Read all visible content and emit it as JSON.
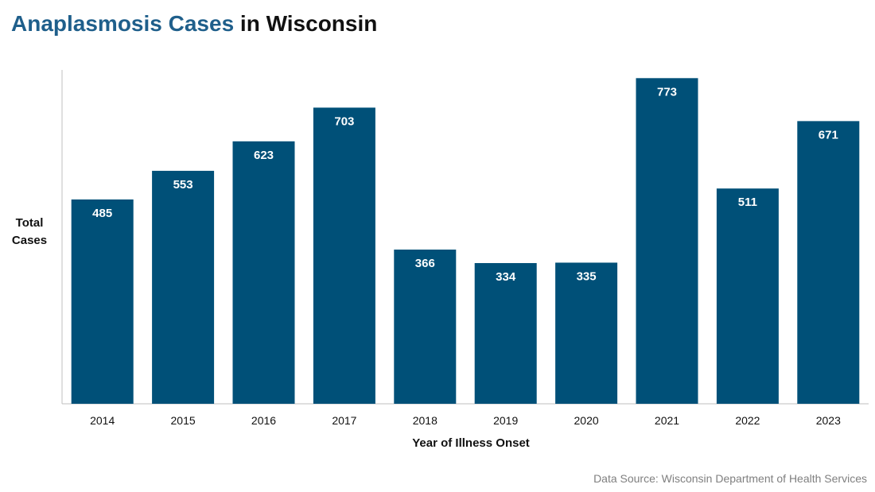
{
  "title": {
    "part1": "Anaplasmosis Cases",
    "part2": " in Wisconsin",
    "accent_color": "#1f5f8b"
  },
  "footer": {
    "source": "Data Source: Wisconsin Department of Health Services"
  },
  "chart_data": {
    "type": "bar",
    "title": "Anaplasmosis Cases in Wisconsin",
    "xlabel": "Year of Illness Onset",
    "ylabel_lines": [
      "Total",
      "Cases"
    ],
    "categories": [
      "2014",
      "2015",
      "2016",
      "2017",
      "2018",
      "2019",
      "2020",
      "2021",
      "2022",
      "2023"
    ],
    "values": [
      485,
      553,
      623,
      703,
      366,
      334,
      335,
      773,
      511,
      671
    ],
    "ylim": [
      0,
      800
    ],
    "grid": false,
    "bar_color": "#005078",
    "label_color": "#ffffff"
  }
}
